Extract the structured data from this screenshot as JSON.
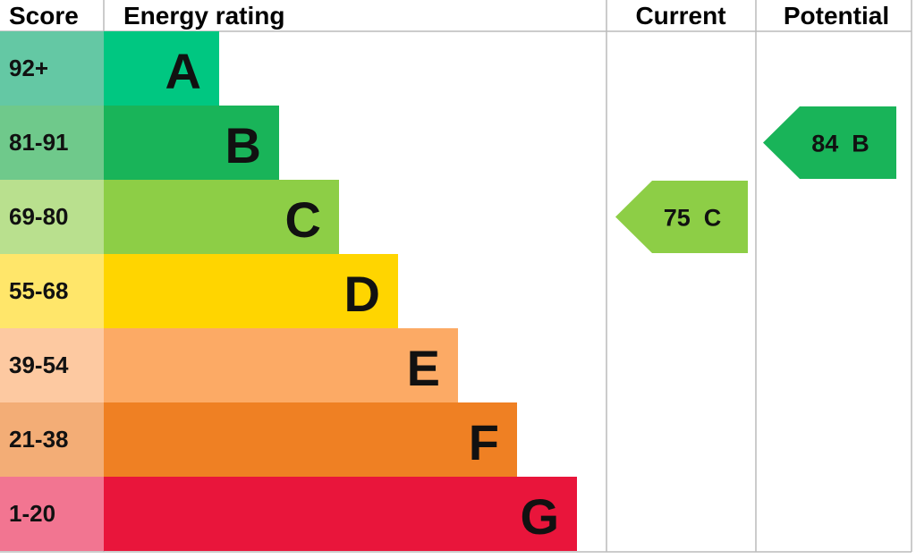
{
  "chart_data": {
    "type": "bar",
    "headers": {
      "score": "Score",
      "rating": "Energy rating",
      "current": "Current",
      "potential": "Potential"
    },
    "bands": [
      {
        "letter": "A",
        "range": "92+",
        "color": "#00c781",
        "light": "#64c8a4"
      },
      {
        "letter": "B",
        "range": "81-91",
        "color": "#19b459",
        "light": "#6fc98b"
      },
      {
        "letter": "C",
        "range": "69-80",
        "color": "#8dce46",
        "light": "#b9e08e"
      },
      {
        "letter": "D",
        "range": "55-68",
        "color": "#ffd500",
        "light": "#ffe66a"
      },
      {
        "letter": "E",
        "range": "39-54",
        "color": "#fcaa65",
        "light": "#fdc9a1"
      },
      {
        "letter": "F",
        "range": "21-38",
        "color": "#ef8023",
        "light": "#f3ad76"
      },
      {
        "letter": "G",
        "range": "1-20",
        "color": "#e9153b",
        "light": "#f27591"
      }
    ],
    "current": {
      "value": 75,
      "letter": "C",
      "label": "75  C",
      "color": "#8dce46"
    },
    "potential": {
      "value": 84,
      "letter": "B",
      "label": "84  B",
      "color": "#19b459"
    }
  }
}
